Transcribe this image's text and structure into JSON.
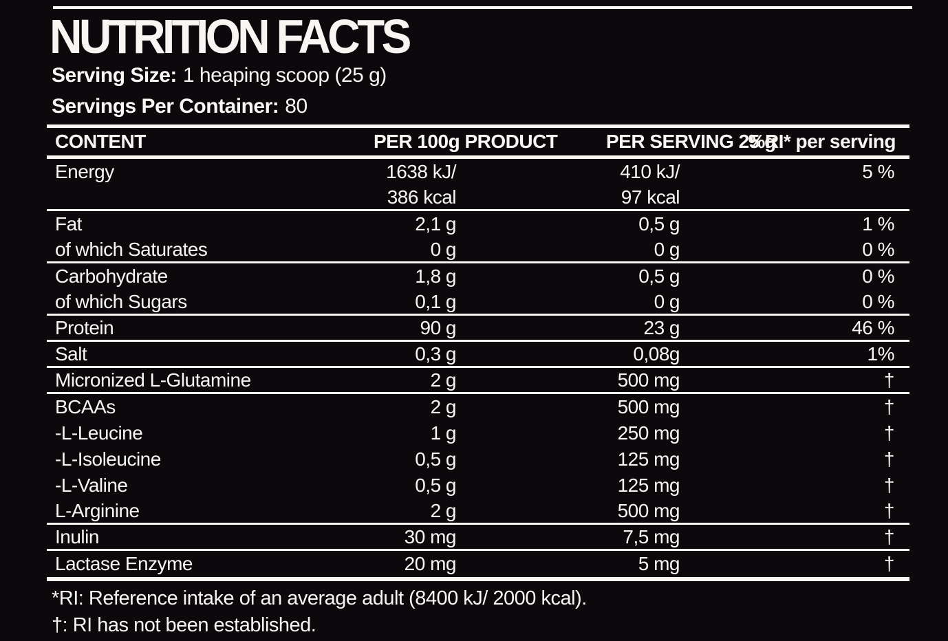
{
  "colors": {
    "background": "#0B090B",
    "text": "#F7F6F3"
  },
  "header": {
    "title": "NUTRITION FACTS",
    "serving_size_label": "Serving Size:",
    "serving_size_value": "1 heaping scoop (25 g)",
    "servings_per_container_label": "Servings Per Container:",
    "servings_per_container_value": "80"
  },
  "table": {
    "columns": [
      "CONTENT",
      "PER 100g PRODUCT",
      "PER SERVING 25 g",
      "%RI* per serving"
    ],
    "rows": [
      {
        "name": "Energy",
        "per100": "1638 kJ/",
        "serving": "410 kJ/",
        "ri": "5 %",
        "divider": false
      },
      {
        "name": "",
        "per100": "386 kcal",
        "serving": "97 kcal",
        "ri": "",
        "divider": true
      },
      {
        "name": "Fat",
        "per100": "2,1 g",
        "serving": "0,5 g",
        "ri": "1 %",
        "divider": false
      },
      {
        "name": "of which Saturates",
        "per100": "0 g",
        "serving": "0 g",
        "ri": "0 %",
        "divider": true
      },
      {
        "name": "Carbohydrate",
        "per100": "1,8 g",
        "serving": "0,5 g",
        "ri": "0 %",
        "divider": false
      },
      {
        "name": "of which Sugars",
        "per100": "0,1 g",
        "serving": "0 g",
        "ri": "0 %",
        "divider": true
      },
      {
        "name": "Protein",
        "per100": "90 g",
        "serving": "23 g",
        "ri": "46 %",
        "divider": true
      },
      {
        "name": "Salt",
        "per100": "0,3 g",
        "serving": "0,08g",
        "ri": "1%",
        "divider": true
      },
      {
        "name": "Micronized L-Glutamine",
        "per100": "2 g",
        "serving": "500 mg",
        "ri": "†",
        "divider": true
      },
      {
        "name": "BCAAs",
        "per100": "2 g",
        "serving": "500 mg",
        "ri": "†",
        "divider": false
      },
      {
        "name": "-L-Leucine",
        "per100": "1 g",
        "serving": "250 mg",
        "ri": "†",
        "divider": false
      },
      {
        "name": "-L-Isoleucine",
        "per100": "0,5 g",
        "serving": "125 mg",
        "ri": "†",
        "divider": false
      },
      {
        "name": "-L-Valine",
        "per100": "0,5 g",
        "serving": "125 mg",
        "ri": "†",
        "divider": false
      },
      {
        "name": "L-Arginine",
        "per100": "2 g",
        "serving": "500 mg",
        "ri": "†",
        "divider": true
      },
      {
        "name": "Inulin",
        "per100": "30 mg",
        "serving": "7,5 mg",
        "ri": "†",
        "divider": true
      },
      {
        "name": "Lactase Enzyme",
        "per100": "20 mg",
        "serving": "5 mg",
        "ri": "†",
        "divider": false
      }
    ]
  },
  "footnotes": [
    "*RI: Reference intake of an average adult (8400 kJ/ 2000 kcal).",
    "†: RI has not been established."
  ]
}
